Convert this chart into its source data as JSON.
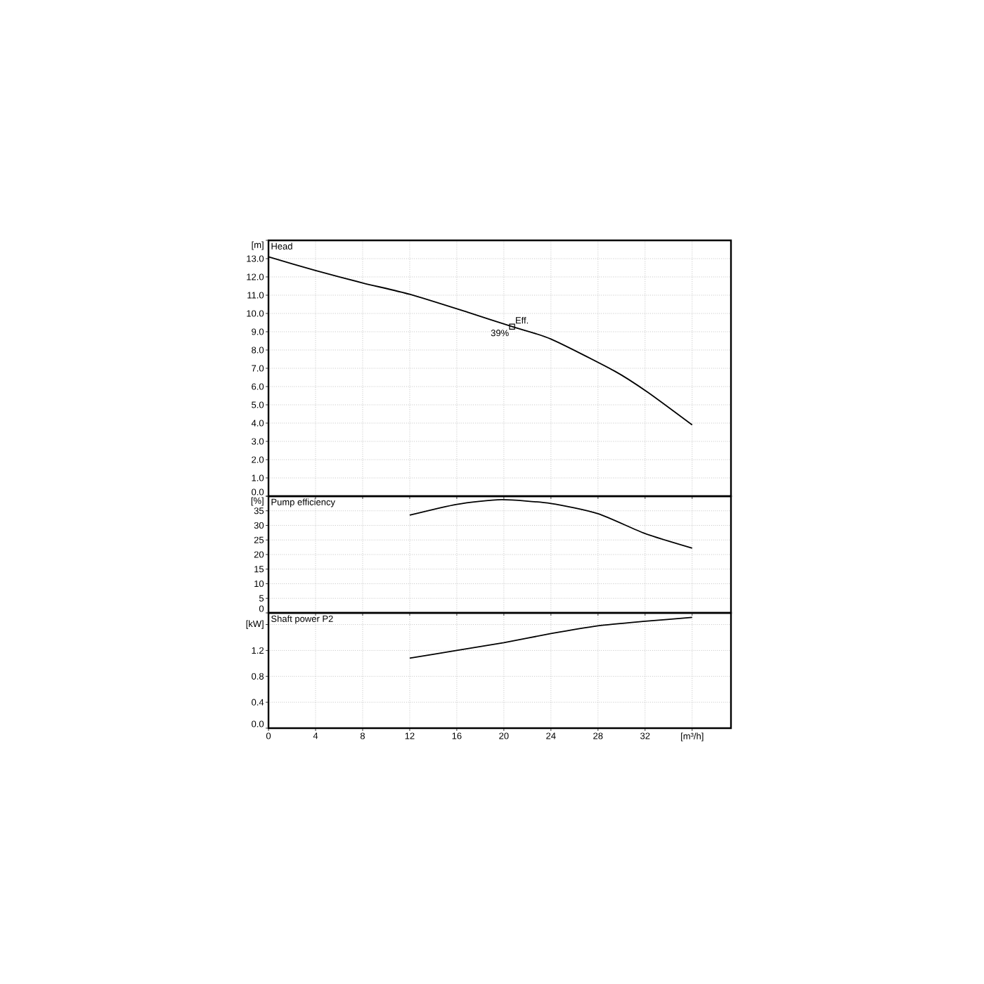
{
  "chart_data": [
    {
      "type": "line",
      "title": "Head",
      "xlim": [
        0,
        39.3
      ],
      "ylim": [
        0,
        14
      ],
      "tick_labels": "y",
      "grid": true,
      "xticks": [
        0,
        4,
        8,
        12,
        16,
        20,
        24,
        28,
        32,
        36
      ],
      "yticks": [
        {
          "value": 0,
          "label": "0.0"
        },
        {
          "value": 1,
          "label": "1.0"
        },
        {
          "value": 2,
          "label": "2.0"
        },
        {
          "value": 3,
          "label": "3.0"
        },
        {
          "value": 4,
          "label": "4.0"
        },
        {
          "value": 5,
          "label": "5.0"
        },
        {
          "value": 6,
          "label": "6.0"
        },
        {
          "value": 7,
          "label": "7.0"
        },
        {
          "value": 8,
          "label": "8.0"
        },
        {
          "value": 9,
          "label": "9.0"
        },
        {
          "value": 10,
          "label": "10.0"
        },
        {
          "value": 11,
          "label": "11.0"
        },
        {
          "value": 12,
          "label": "12.0"
        },
        {
          "value": 13,
          "label": "13.0"
        },
        {
          "value": 14,
          "label": "[m]"
        }
      ],
      "series": [
        {
          "type": "line",
          "color": "#000000",
          "x": [
            0,
            4,
            8,
            12,
            17,
            20.7,
            24,
            29.4,
            32.2,
            36
          ],
          "values": [
            13.1,
            12.35,
            11.67,
            11.05,
            10.05,
            9.28,
            8.6,
            6.85,
            5.7,
            3.9
          ]
        },
        {
          "type": "scatter",
          "color": "#000000",
          "marker": "square",
          "x": [
            20.7
          ],
          "values": [
            9.28
          ]
        }
      ],
      "annotations": [
        {
          "text": "Eff.",
          "x": 20.7,
          "y": 9.28
        },
        {
          "text": "39%",
          "x": 20.7,
          "y": 9.28
        }
      ]
    },
    {
      "type": "line",
      "title": "Pump efficiency",
      "xlim": [
        0,
        39.3
      ],
      "ylim": [
        0,
        40
      ],
      "tick_labels": "y",
      "grid": true,
      "xticks": [
        0,
        4,
        8,
        12,
        16,
        20,
        24,
        28,
        32,
        36
      ],
      "yticks": [
        0,
        5,
        10,
        15,
        20,
        25,
        30,
        35,
        {
          "value": 40,
          "label": "[%]"
        }
      ],
      "series": [
        {
          "type": "line",
          "color": "#000000",
          "x": [
            12,
            16,
            19.8,
            24,
            28,
            32,
            36
          ],
          "values": [
            33.5,
            37.2,
            38.8,
            37.5,
            34,
            27.2,
            22.2
          ]
        }
      ]
    },
    {
      "type": "line",
      "title": "Shaft power P2",
      "xlim": [
        0,
        39.3
      ],
      "ylim": [
        0,
        1.78
      ],
      "grid": true,
      "xticks": [
        0,
        4,
        8,
        12,
        16,
        20,
        24,
        28,
        32,
        {
          "value": 36,
          "label": "[m³/h]"
        }
      ],
      "yticks": [
        {
          "value": 0,
          "label": "0.0"
        },
        0.4,
        0.8,
        1.2,
        {
          "value": 1.6,
          "label": "[kW]"
        }
      ],
      "series": [
        {
          "type": "line",
          "color": "#000000",
          "x": [
            12,
            16,
            20,
            24,
            28,
            32,
            36
          ],
          "values": [
            1.08,
            1.2,
            1.32,
            1.46,
            1.58,
            1.65,
            1.71
          ]
        }
      ]
    }
  ]
}
